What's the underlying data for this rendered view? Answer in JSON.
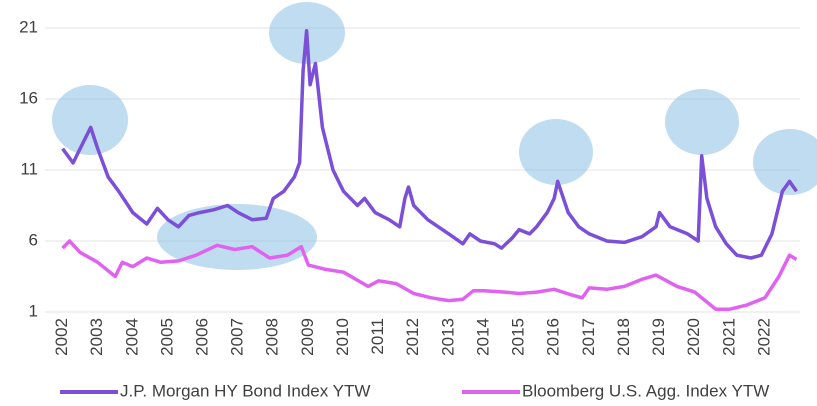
{
  "chart_data": {
    "type": "line",
    "xlim": [
      2001.5,
      2023
    ],
    "xticks": [
      2002,
      2003,
      2004,
      2005,
      2006,
      2007,
      2008,
      2009,
      2010,
      2011,
      2012,
      2013,
      2014,
      2015,
      2016,
      2017,
      2018,
      2019,
      2020,
      2021,
      2022
    ],
    "ylim": [
      1,
      21
    ],
    "yticks": [
      1,
      6,
      11,
      16,
      21
    ],
    "grid": true,
    "legend": "bottom",
    "series": [
      {
        "name": "J.P. Morgan HY Bond Index YTW",
        "color": "#7b4fd8",
        "x": [
          2002.0,
          2002.3,
          2002.6,
          2002.8,
          2003.0,
          2003.3,
          2003.6,
          2004.0,
          2004.4,
          2004.7,
          2005.0,
          2005.3,
          2005.6,
          2005.9,
          2006.3,
          2006.7,
          2007.0,
          2007.4,
          2007.8,
          2008.0,
          2008.3,
          2008.6,
          2008.75,
          2008.85,
          2008.95,
          2009.05,
          2009.2,
          2009.4,
          2009.7,
          2010.0,
          2010.4,
          2010.6,
          2010.9,
          2011.3,
          2011.6,
          2011.75,
          2011.85,
          2012.0,
          2012.4,
          2012.7,
          2013.0,
          2013.4,
          2013.6,
          2013.9,
          2014.3,
          2014.5,
          2014.8,
          2015.0,
          2015.3,
          2015.5,
          2015.8,
          2016.0,
          2016.1,
          2016.4,
          2016.7,
          2017.0,
          2017.5,
          2018.0,
          2018.5,
          2018.9,
          2019.0,
          2019.3,
          2019.8,
          2020.1,
          2020.2,
          2020.35,
          2020.6,
          2020.9,
          2021.2,
          2021.6,
          2021.9,
          2022.2,
          2022.5,
          2022.7,
          2022.9
        ],
        "values": [
          12.5,
          11.5,
          13.0,
          14.0,
          12.5,
          10.5,
          9.5,
          8.0,
          7.2,
          8.3,
          7.5,
          7.0,
          7.8,
          8.0,
          8.2,
          8.5,
          8.0,
          7.5,
          7.6,
          9.0,
          9.5,
          10.5,
          11.5,
          18.0,
          20.8,
          17.0,
          18.5,
          14.0,
          11.0,
          9.5,
          8.5,
          9.0,
          8.0,
          7.5,
          7.0,
          9.0,
          9.8,
          8.5,
          7.5,
          7.0,
          6.5,
          5.8,
          6.5,
          6.0,
          5.8,
          5.5,
          6.2,
          6.8,
          6.5,
          7.0,
          8.0,
          9.0,
          10.2,
          8.0,
          7.0,
          6.5,
          6.0,
          5.9,
          6.3,
          7.0,
          8.0,
          7.0,
          6.5,
          6.0,
          12.0,
          9.0,
          7.0,
          5.8,
          5.0,
          4.8,
          5.0,
          6.5,
          9.5,
          10.2,
          9.5
        ]
      },
      {
        "name": "Bloomberg U.S. Agg. Index YTW",
        "color": "#e062f0",
        "x": [
          2002.0,
          2002.2,
          2002.5,
          2003.0,
          2003.5,
          2003.7,
          2004.0,
          2004.4,
          2004.8,
          2005.3,
          2005.8,
          2006.4,
          2006.9,
          2007.4,
          2007.9,
          2008.4,
          2008.8,
          2009.0,
          2009.5,
          2010.0,
          2010.7,
          2011.0,
          2011.5,
          2012.0,
          2012.5,
          2013.0,
          2013.4,
          2013.7,
          2014.0,
          2014.6,
          2015.0,
          2015.5,
          2016.0,
          2016.5,
          2016.8,
          2017.0,
          2017.5,
          2018.0,
          2018.5,
          2018.9,
          2019.5,
          2020.0,
          2020.3,
          2020.6,
          2021.0,
          2021.5,
          2022.0,
          2022.4,
          2022.7,
          2022.9
        ],
        "values": [
          5.5,
          6.0,
          5.2,
          4.5,
          3.5,
          4.5,
          4.2,
          4.8,
          4.5,
          4.6,
          5.0,
          5.7,
          5.4,
          5.6,
          4.8,
          5.0,
          5.6,
          4.3,
          4.0,
          3.8,
          2.8,
          3.2,
          3.0,
          2.3,
          2.0,
          1.8,
          1.9,
          2.5,
          2.5,
          2.4,
          2.3,
          2.4,
          2.6,
          2.2,
          2.0,
          2.7,
          2.6,
          2.8,
          3.3,
          3.6,
          2.8,
          2.4,
          1.8,
          1.2,
          1.2,
          1.5,
          2.0,
          3.5,
          5.0,
          4.7
        ]
      }
    ]
  }
}
